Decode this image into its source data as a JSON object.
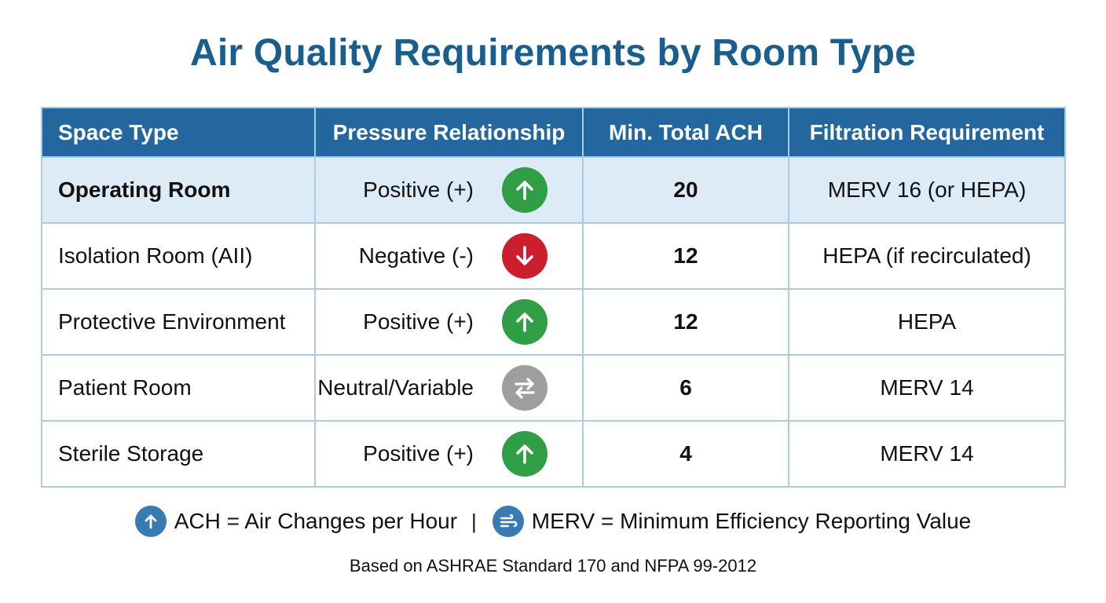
{
  "title": "Air Quality Requirements by Room Type",
  "table": {
    "headers": {
      "space": "Space Type",
      "pressure": "Pressure Relationship",
      "ach": "Min. Total ACH",
      "filtration": "Filtration Requirement"
    },
    "rows": [
      {
        "space": "Operating Room",
        "pressure": "Positive (+)",
        "pressure_icon": "arrow-up-icon",
        "ach": "20",
        "filtration": "MERV 16 (or HEPA)",
        "highlighted": true
      },
      {
        "space": "Isolation Room (AII)",
        "pressure": "Negative (-)",
        "pressure_icon": "arrow-down-icon",
        "ach": "12",
        "filtration": "HEPA (if recirculated)",
        "highlighted": false
      },
      {
        "space": "Protective Environment",
        "pressure": "Positive (+)",
        "pressure_icon": "arrow-up-icon",
        "ach": "12",
        "filtration": "HEPA",
        "highlighted": false
      },
      {
        "space": "Patient Room",
        "pressure": "Neutral/Variable",
        "pressure_icon": "swap-arrows-icon",
        "ach": "6",
        "filtration": "MERV 14",
        "highlighted": false
      },
      {
        "space": "Sterile Storage",
        "pressure": "Positive (+)",
        "pressure_icon": "arrow-up-icon",
        "ach": "4",
        "filtration": "MERV 14",
        "highlighted": false
      }
    ]
  },
  "legend": {
    "ach_icon": "arrow-up-icon",
    "ach_text": "ACH = Air Changes per Hour",
    "separator": "|",
    "merv_icon": "airflow-icon",
    "merv_text": "MERV = Minimum Efficiency Reporting Value"
  },
  "source": "Based on ASHRAE Standard 170 and NFPA 99-2012",
  "colors": {
    "title": "#1a5e8e",
    "header_bg": "#24679f",
    "highlight_row": "#dcebf6",
    "grid": "#a9cbe3",
    "positive": "#2f9e44",
    "negative": "#cc1f2d",
    "neutral": "#9e9e9e",
    "legend_icon": "#3a7ab3"
  }
}
